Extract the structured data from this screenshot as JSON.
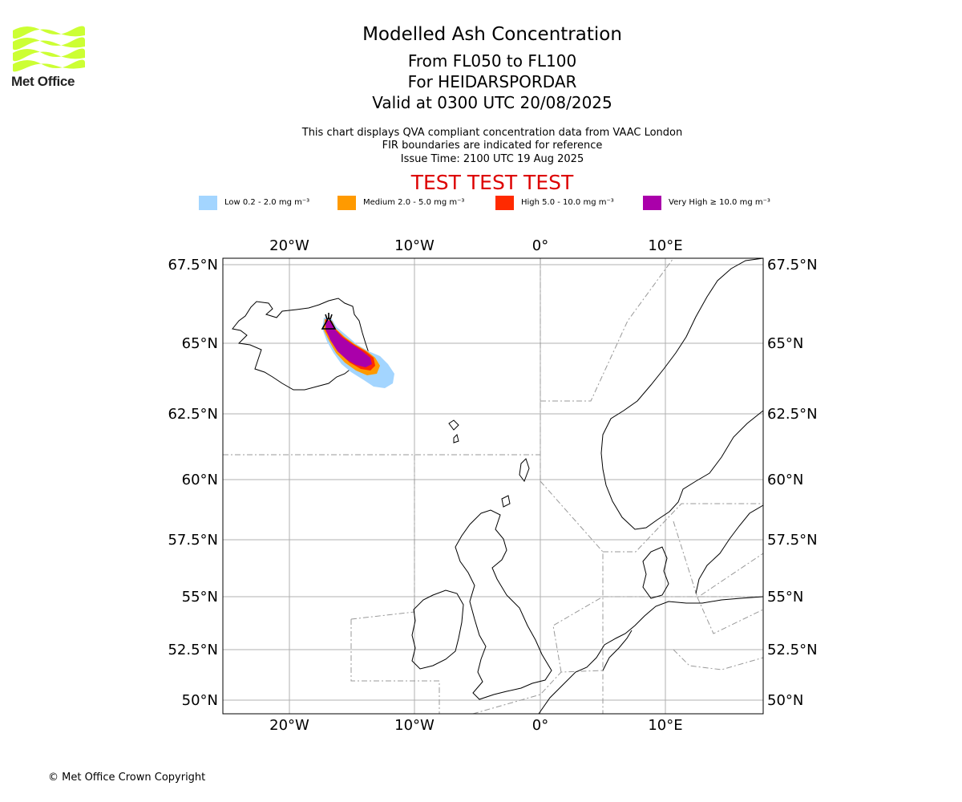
{
  "logo": {
    "text": "Met Office",
    "color": "#ccff33"
  },
  "title": "Modelled Ash Concentration",
  "levels": "From FL050 to FL100",
  "volcano": "For HEIDARSPORDAR",
  "valid": "Valid at 0300 UTC 20/08/2025",
  "subtitle_lines": [
    "This chart displays QVA compliant concentration data from VAAC London",
    "FIR boundaries are indicated for reference",
    "Issue Time: 2100 UTC 19 Aug 2025"
  ],
  "test_banner": "TEST TEST TEST",
  "legend": [
    {
      "label": "Low 0.2 - 2.0 mg m⁻³",
      "color": "#a3d5ff"
    },
    {
      "label": "Medium 2.0 - 5.0 mg m⁻³",
      "color": "#ff9a00"
    },
    {
      "label": "High 5.0 - 10.0 mg m⁻³",
      "color": "#ff2a00"
    },
    {
      "label": "Very High ≥ 10.0 mg m⁻³",
      "color": "#aa00aa"
    }
  ],
  "axes": {
    "lon_labels": [
      "20°W",
      "10°W",
      "0°",
      "10°E"
    ],
    "lat_labels": [
      "67.5°N",
      "65°N",
      "62.5°N",
      "60°N",
      "57.5°N",
      "55°N",
      "52.5°N",
      "50°N"
    ]
  },
  "copyright": "© Met Office Crown Copyright"
}
